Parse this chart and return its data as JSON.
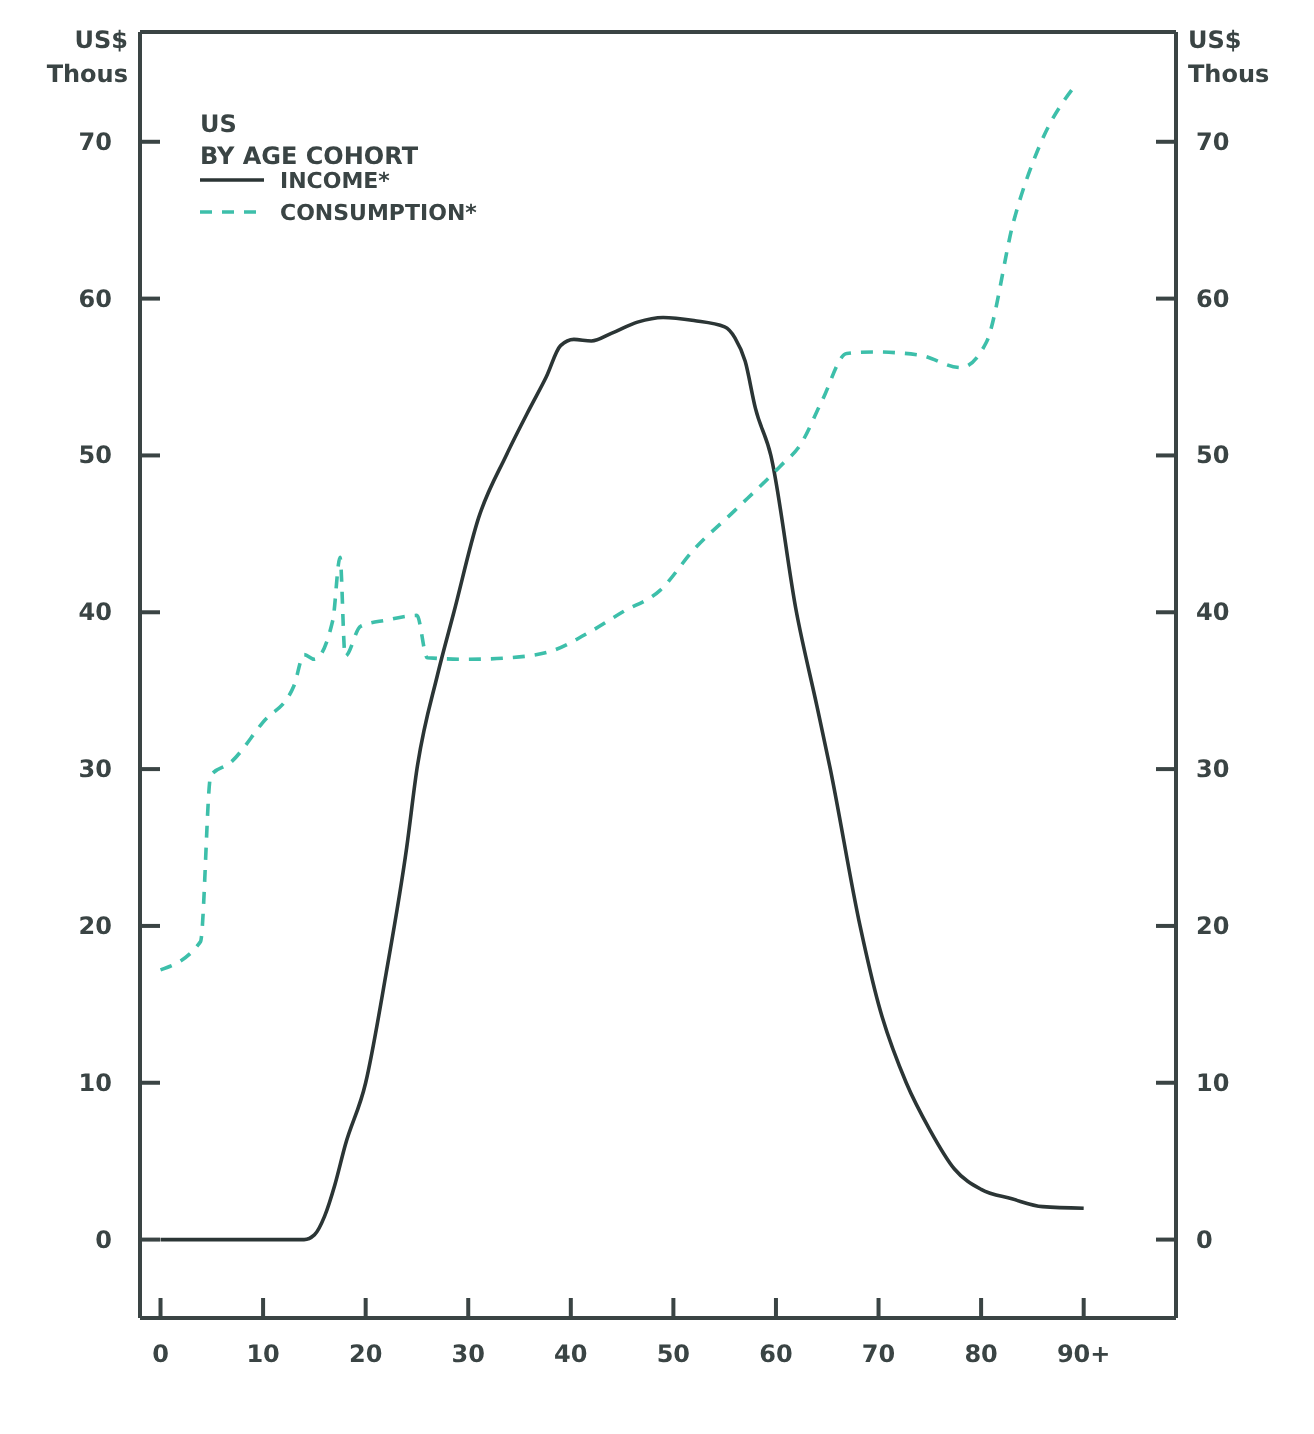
{
  "chart_data": {
    "type": "line",
    "ylabel": "US$\nThous",
    "y2label": "US$\nThous",
    "legend_title": "US\nBY AGE COHORT",
    "legend": "top left",
    "grid": false,
    "marker": "none",
    "xlim": [
      -2,
      99
    ],
    "xticks": [
      0,
      10,
      20,
      30,
      40,
      50,
      60,
      70,
      80,
      {
        "value": 90,
        "label": "90+"
      }
    ],
    "ylim": [
      -5,
      77
    ],
    "yticks": [
      0,
      10,
      20,
      30,
      40,
      50,
      60,
      70
    ],
    "y2lim": [
      -5,
      77
    ],
    "y2ticks": [
      0,
      10,
      20,
      30,
      40,
      50,
      60,
      70
    ],
    "series": [
      {
        "name": "INCOME*",
        "color": "#2b3535",
        "line_style": "solid",
        "x": [
          0,
          14,
          15,
          16,
          17,
          18,
          20,
          22,
          24,
          25,
          27,
          28.6,
          31,
          33.7,
          36,
          37.6,
          39,
          40.3,
          42,
          44,
          46.5,
          49,
          52,
          55,
          56,
          57,
          58,
          59.5,
          62,
          64,
          65.3,
          68.2,
          70,
          72.7,
          75,
          77.4,
          80,
          83,
          86,
          90
        ],
        "values": [
          0,
          0,
          0.3,
          1.5,
          3.5,
          6,
          10,
          17,
          25,
          30,
          36,
          40,
          46,
          50,
          53,
          55,
          57,
          57.4,
          57.3,
          57.8,
          58.5,
          58.8,
          58.6,
          58.2,
          57.5,
          56,
          53,
          50,
          40,
          34,
          30,
          20,
          15,
          10,
          7,
          4.5,
          3.2,
          2.6,
          2.1,
          2
        ]
      },
      {
        "name": "CONSUMPTION*",
        "color": "#3dbfaa",
        "line_style": "dashed",
        "x": [
          0,
          3.9,
          4.9,
          6.8,
          10,
          13,
          14,
          15,
          16.8,
          17.5,
          18,
          19.5,
          22,
          25,
          26,
          30,
          34,
          38,
          42,
          45,
          48.7,
          52,
          56,
          60.4,
          62.4,
          64.5,
          66.9,
          69.6,
          74,
          78,
          80.5,
          83.2,
          85.8,
          89.3
        ],
        "values": [
          17.2,
          19,
          29.6,
          30.4,
          33,
          35.3,
          37.3,
          37,
          39.5,
          43.5,
          37.2,
          39.1,
          39.5,
          39.8,
          37.1,
          37,
          37.1,
          37.5,
          38.8,
          40,
          41.4,
          44,
          46.5,
          49.3,
          50.7,
          53.5,
          56.5,
          56.6,
          56.4,
          55.6,
          57.2,
          65,
          69.9,
          73.7
        ]
      }
    ]
  }
}
